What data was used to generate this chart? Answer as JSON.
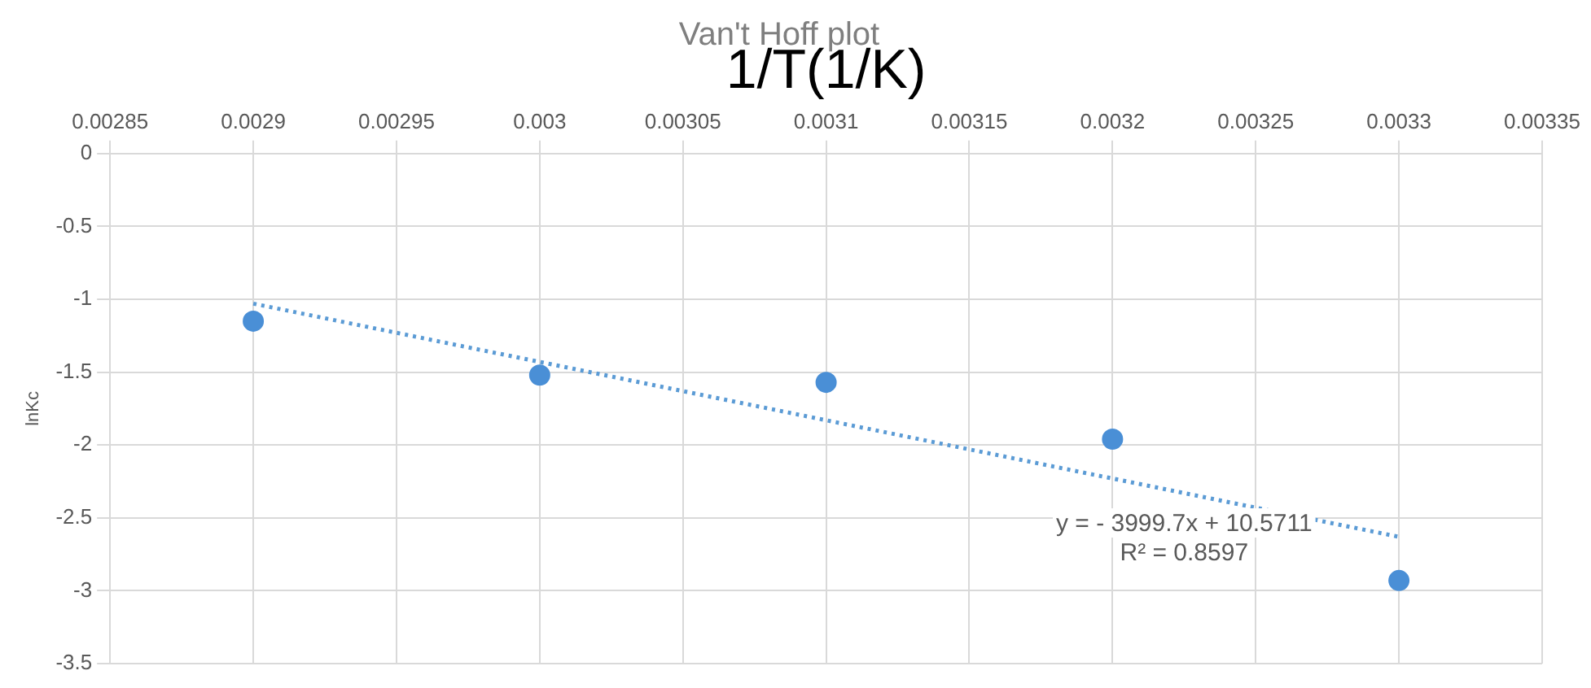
{
  "chart_data": {
    "type": "scatter",
    "title": "Van't Hoff plot",
    "xlabel": "1/T(1/K)",
    "ylabel": "lnKc",
    "annotations": [
      "y = - 3999.7x + 10.5711",
      "R² = 0.8597"
    ],
    "xlim": [
      0.00285,
      0.00335
    ],
    "xticks": [
      0.00285,
      0.0029,
      0.00295,
      0.003,
      0.00305,
      0.0031,
      0.00315,
      0.0032,
      0.00325,
      0.0033,
      0.00335
    ],
    "ylim": [
      -3.5,
      0
    ],
    "yticks": [
      0,
      -0.5,
      -1,
      -1.5,
      -2,
      -2.5,
      -3,
      -3.5
    ],
    "grid": true,
    "legend": false,
    "series": [
      {
        "color": "#4a8fd6",
        "marker": "circle",
        "x": [
          0.0029,
          0.003,
          0.0031,
          0.0032,
          0.0033
        ],
        "values": [
          -1.15,
          -1.52,
          -1.57,
          -1.96,
          -2.93
        ]
      },
      {
        "type": "line",
        "color": "#5b9bd5",
        "marker": "none",
        "line_style": "dotted",
        "x": [
          0.0029,
          0.0033
        ],
        "values": [
          -1.03,
          -2.63
        ]
      }
    ]
  }
}
